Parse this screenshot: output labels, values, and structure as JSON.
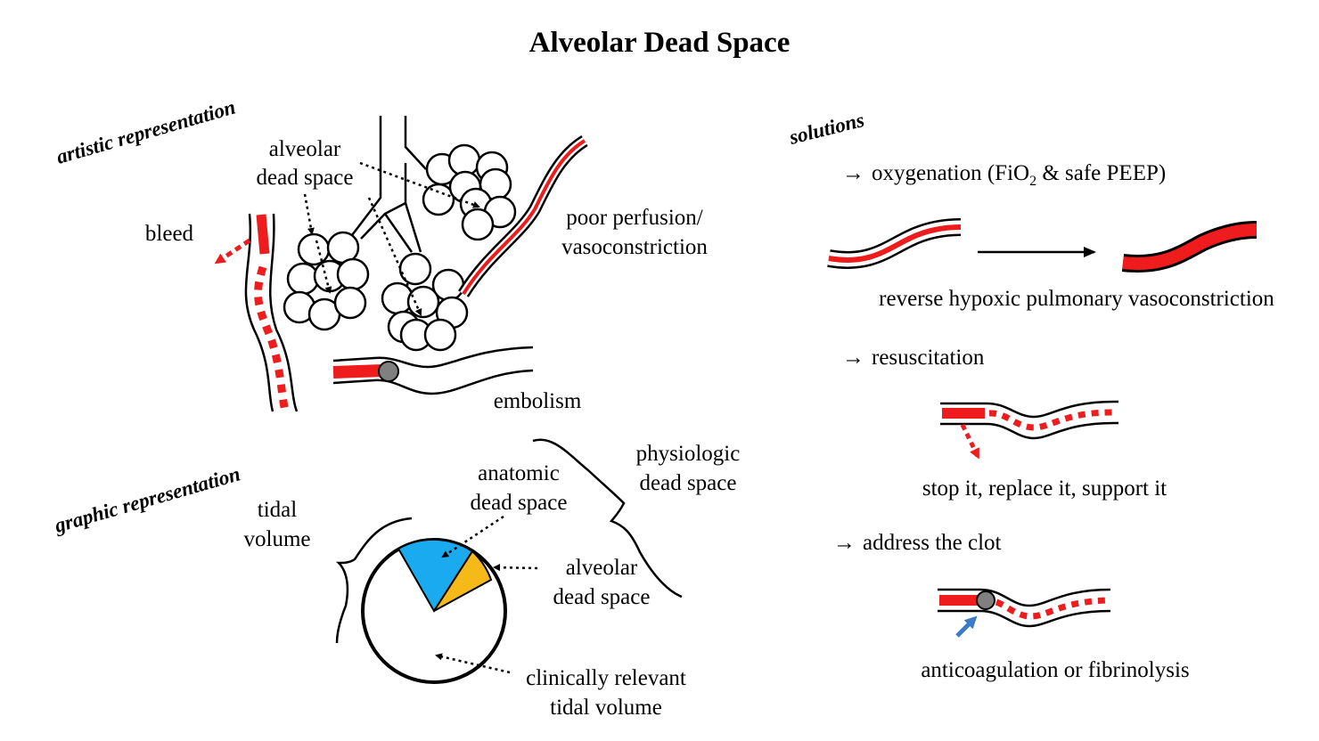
{
  "title": "Alveolar Dead Space",
  "artistic": {
    "heading": "artistic representation",
    "alveolar_dead_space_1": "alveolar",
    "alveolar_dead_space_2": "dead space",
    "bleed": "bleed",
    "poor_perfusion_1": "poor perfusion/",
    "poor_perfusion_2": "vasoconstriction",
    "embolism": "embolism"
  },
  "graphic": {
    "heading": "graphic representation",
    "tidal_1": "tidal",
    "tidal_2": "volume",
    "anatomic_1": "anatomic",
    "anatomic_2": "dead space",
    "physiologic_1": "physiologic",
    "physiologic_2": "dead space",
    "alveolar_1": "alveolar",
    "alveolar_2": "dead space",
    "clinical_1": "clinically relevant",
    "clinical_2": "tidal volume",
    "colors": {
      "anatomic": "#1aaaf0",
      "alveolar": "#f5b919"
    }
  },
  "solutions": {
    "heading": "solutions",
    "arrow_glyph": "→",
    "oxygenation_prefix": "oxygenation (FiO",
    "oxygenation_sub": "2",
    "oxygenation_suffix": " & safe PEEP)",
    "reverse_hpv": "reverse hypoxic pulmonary vasoconstriction",
    "resuscitation": "resuscitation",
    "stop_it": "stop it, replace it, support it",
    "address_clot": "address the clot",
    "anticoag": "anticoagulation or fibrinolysis"
  },
  "colors": {
    "blood": "#ee1c1c",
    "clot": "#808080",
    "pointer": "#3b7bc8"
  }
}
